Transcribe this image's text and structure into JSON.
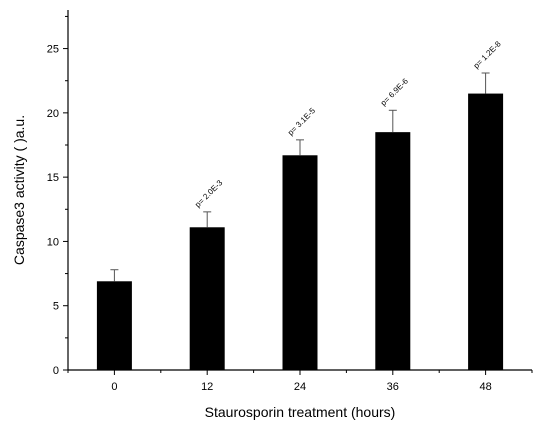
{
  "chart_data": {
    "type": "bar",
    "categories": [
      "0",
      "12",
      "24",
      "36",
      "48"
    ],
    "values": [
      6.9,
      11.1,
      16.7,
      18.5,
      21.5
    ],
    "errors": [
      0.9,
      1.2,
      1.2,
      1.7,
      1.6
    ],
    "annotations": [
      "",
      "p= 2.0E-3",
      "p= 3.1E-5",
      "p= 6.9E-6",
      "p= 1.2E-8"
    ],
    "xlabel": "Staurosporin treatment (hours)",
    "ylabel": "Caspase3 activity ( )a.u.",
    "ylim": [
      0,
      28
    ],
    "yticks": [
      0,
      5,
      10,
      15,
      20,
      25
    ],
    "grid": false
  }
}
